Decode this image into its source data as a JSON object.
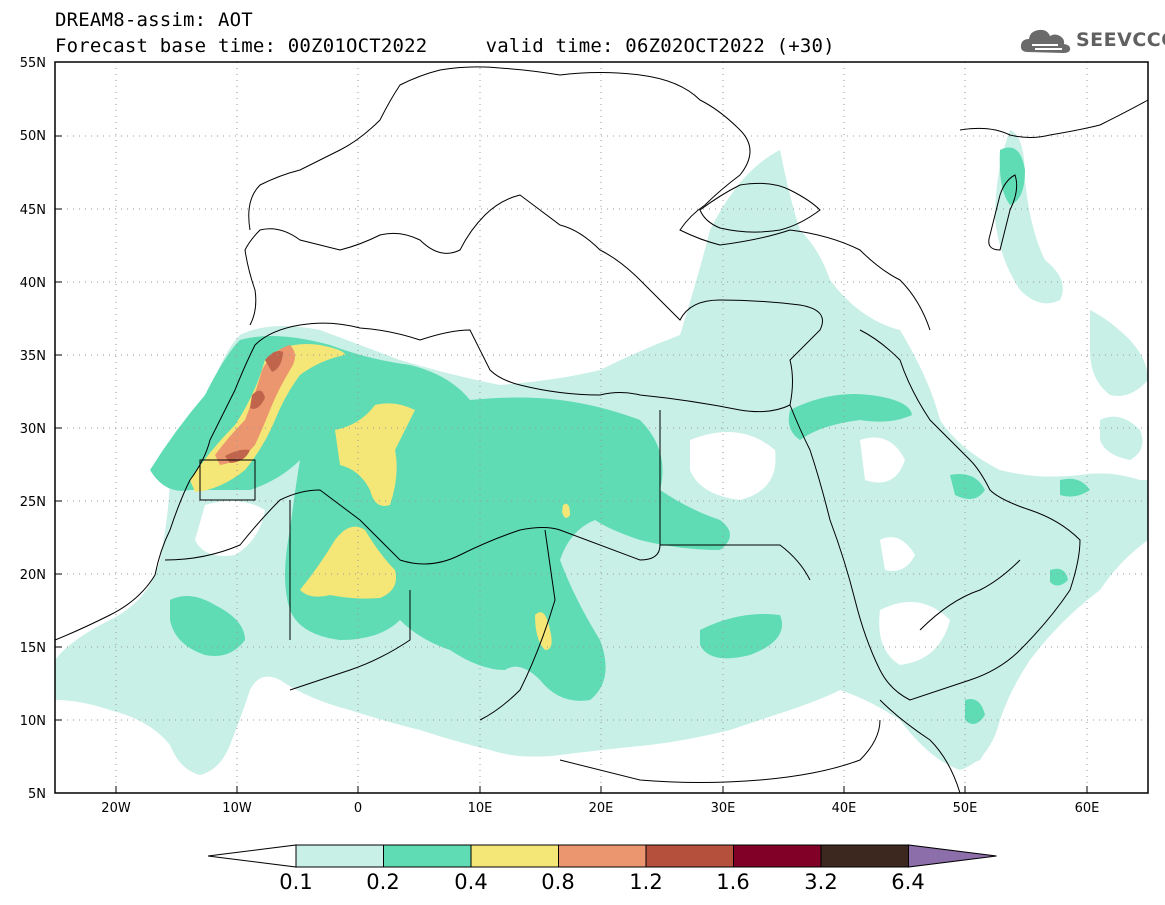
{
  "header": {
    "line1": "DREAM8-assim: AOT",
    "line2": "Forecast base time: 00Z01OCT2022     valid time: 06Z02OCT2022 (+30)"
  },
  "logo": {
    "text": "SEEVCCC",
    "icon": "cloud-icon"
  },
  "map": {
    "lat_labels": [
      "55N",
      "50N",
      "45N",
      "40N",
      "35N",
      "30N",
      "25N",
      "20N",
      "15N",
      "10N",
      "5N"
    ],
    "lon_labels": [
      "20W",
      "10W",
      "0",
      "10E",
      "20E",
      "30E",
      "40E",
      "50E",
      "60E"
    ],
    "lat_range": [
      5,
      55
    ],
    "lon_range": [
      -25,
      65
    ],
    "grid": true
  },
  "colorbar": {
    "labels": [
      "0.1",
      "0.2",
      "0.4",
      "0.8",
      "1.2",
      "1.6",
      "3.2",
      "6.4"
    ],
    "colors": [
      "#ffffff",
      "#c8f0e6",
      "#5fdcb4",
      "#f5e678",
      "#eb966e",
      "#b4503c",
      "#800028",
      "#3c281e",
      "#8c6eaa"
    ]
  }
}
